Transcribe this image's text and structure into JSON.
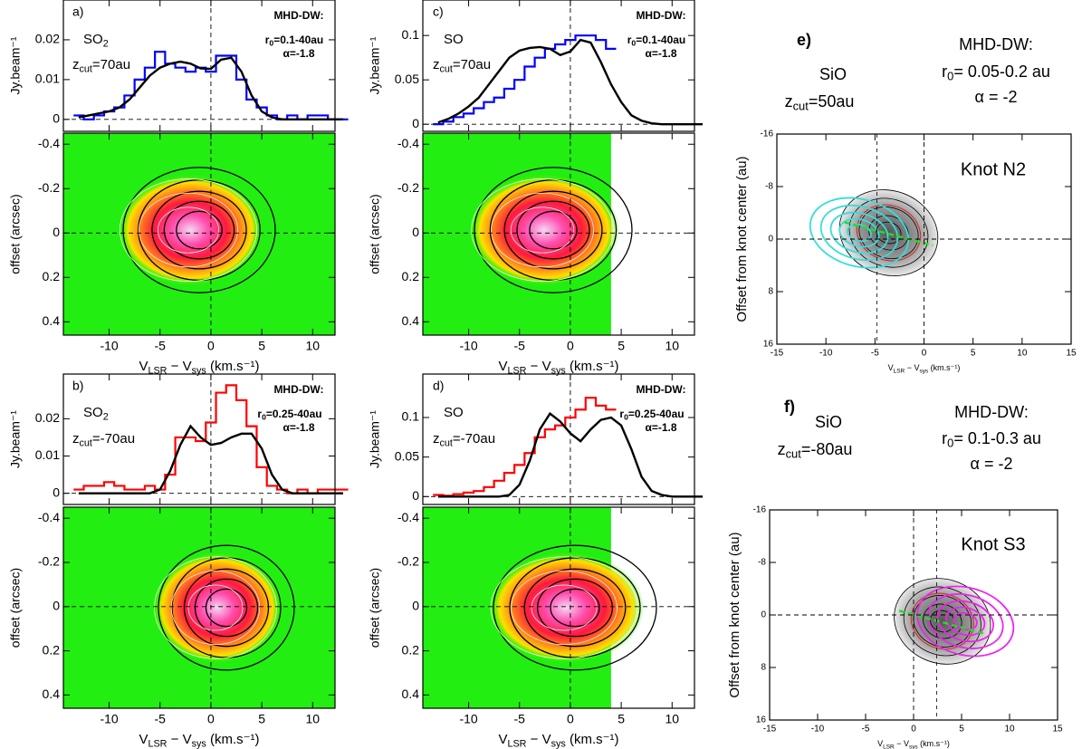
{
  "chart_data": [
    {
      "type": "line",
      "panel_label": "a)",
      "species": [
        "SO",
        "2"
      ],
      "zcut": [
        "z",
        "cut",
        "=70au"
      ],
      "model": "MHD-DW:",
      "r0": [
        "r",
        "0",
        "=0.1-40au"
      ],
      "alpha": "α=-1.8",
      "ylabel": "Jy.beam⁻¹",
      "x": [
        -13,
        -12,
        -11,
        -10,
        -9,
        -8,
        -7,
        -6,
        -5,
        -4,
        -3,
        -2,
        -1,
        0,
        1,
        2,
        3,
        4,
        5,
        6,
        7,
        8,
        9,
        10,
        11,
        12,
        13
      ],
      "xlim": [
        -14.5,
        12.2
      ],
      "xticks": [
        -10,
        -5,
        0,
        5,
        10
      ],
      "ylim": [
        -0.003,
        0.03
      ],
      "yticks": [
        0,
        0.01,
        0.02
      ],
      "series": [
        {
          "color": "#0000ff",
          "step": true,
          "values": [
            0.001,
            0,
            0.001,
            0.002,
            0.003,
            0.006,
            0.01,
            0.013,
            0.017,
            0.014,
            0.013,
            0.012,
            0.013,
            0.012,
            0.016,
            0.016,
            0.01,
            0.005,
            0.003,
            0.001,
            0,
            0.001,
            0,
            0.001,
            0.001,
            0,
            0
          ]
        },
        {
          "color": "#000000",
          "values": [
            0.0005,
            0.001,
            0.0015,
            0.002,
            0.003,
            0.005,
            0.008,
            0.011,
            0.013,
            0.014,
            0.0145,
            0.014,
            0.0128,
            0.0127,
            0.015,
            0.0155,
            0.012,
            0.006,
            0.002,
            0.0005,
            0,
            0,
            0,
            0,
            0,
            0,
            0
          ]
        }
      ]
    },
    {
      "type": "pv",
      "ylabel": "offset (arcsec)",
      "xlabel": [
        "V",
        "LSR",
        " − V",
        "sys",
        " (km.s⁻¹)"
      ],
      "xlim": [
        -14.5,
        12.2
      ],
      "xticks": [
        -10,
        -5,
        0,
        5,
        10
      ],
      "ylim": [
        0.46,
        -0.45
      ],
      "yticks": [
        -0.4,
        -0.2,
        0,
        0.2,
        0.4
      ]
    },
    {
      "type": "line",
      "panel_label": "c)",
      "species": [
        "SO"
      ],
      "zcut": [
        "z",
        "cut",
        "=70au"
      ],
      "model": "MHD-DW:",
      "r0": [
        "r",
        "0",
        "=0.1-40au"
      ],
      "alpha": "α=-1.8",
      "ylabel": "Jy.beam⁻¹",
      "x": [
        -13,
        -12,
        -11,
        -10,
        -9,
        -8,
        -7,
        -6,
        -5,
        -4,
        -3,
        -2,
        -1,
        0,
        1,
        2,
        3,
        4,
        5,
        6,
        7,
        8,
        9,
        10,
        11,
        12,
        13
      ],
      "xlim": [
        -14.5,
        12.2
      ],
      "xticks": [
        -10,
        -5,
        0,
        5,
        10
      ],
      "ylim": [
        -0.008,
        0.14
      ],
      "yticks": [
        0,
        0.05,
        0.1
      ],
      "series": [
        {
          "color": "#0000ff",
          "step": true,
          "values": [
            0,
            0.003,
            0.008,
            0.012,
            0.018,
            0.025,
            0.03,
            0.04,
            0.05,
            0.065,
            0.075,
            0.085,
            0.09,
            0.095,
            0.1,
            0.1,
            0.095,
            0.085,
            null,
            null,
            null,
            null,
            null,
            null,
            null,
            null,
            null
          ]
        },
        {
          "color": "#000000",
          "values": [
            0.002,
            0.006,
            0.012,
            0.02,
            0.03,
            0.045,
            0.06,
            0.075,
            0.083,
            0.086,
            0.087,
            0.085,
            0.078,
            0.082,
            0.095,
            0.092,
            0.07,
            0.045,
            0.025,
            0.01,
            0.004,
            0.001,
            0,
            0,
            0,
            0,
            0
          ]
        }
      ]
    },
    {
      "type": "pv",
      "ylabel": "offset (arcsec)",
      "xlabel": [
        "V",
        "LSR",
        " − V",
        "sys",
        " (km.s⁻¹)"
      ],
      "xlim": [
        -14.5,
        12.2
      ],
      "xticks": [
        -10,
        -5,
        0,
        5,
        10
      ],
      "ylim": [
        0.46,
        -0.45
      ],
      "yticks": [
        -0.4,
        -0.2,
        0,
        0.2,
        0.4
      ]
    },
    {
      "type": "line",
      "panel_label": "b)",
      "species": [
        "SO",
        "2"
      ],
      "zcut": [
        "z",
        "cut",
        "=-70au"
      ],
      "model": "MHD-DW:",
      "r0": [
        "r",
        "0",
        "=0.25-40au"
      ],
      "alpha": "α=-1.8",
      "ylabel": "Jy.beam⁻¹",
      "x": [
        -13,
        -12,
        -11,
        -10,
        -9,
        -8,
        -7,
        -6,
        -5,
        -4,
        -3,
        -2,
        -1,
        0,
        1,
        2,
        3,
        4,
        5,
        6,
        7,
        8,
        9,
        10,
        11,
        12,
        13
      ],
      "xlim": [
        -14.5,
        12.2
      ],
      "xticks": [
        -10,
        -5,
        0,
        5,
        10
      ],
      "ylim": [
        -0.003,
        0.032
      ],
      "yticks": [
        0,
        0.01,
        0.02
      ],
      "series": [
        {
          "color": "#ff0000",
          "step": true,
          "values": [
            0.001,
            0.002,
            0.002,
            0.003,
            0.002,
            0.001,
            0.001,
            0.002,
            0.001,
            0.005,
            0.015,
            0.015,
            0.014,
            0.019,
            0.027,
            0.029,
            0.025,
            0.018,
            0.007,
            0.002,
            0.001,
            0,
            0.001,
            0,
            0.001,
            0.001,
            0.001
          ]
        },
        {
          "color": "#000000",
          "values": [
            0,
            0,
            0,
            0,
            0,
            0,
            0,
            0,
            0.001,
            0.006,
            0.013,
            0.018,
            0.015,
            0.013,
            0.0135,
            0.015,
            0.016,
            0.016,
            0.012,
            0.005,
            0.001,
            0,
            0,
            0,
            0,
            0,
            0
          ]
        }
      ]
    },
    {
      "type": "pv",
      "ylabel": "offset (arcsec)",
      "xlabel": [
        "V",
        "LSR",
        " − V",
        "sys",
        " (km.s⁻¹)"
      ],
      "xlim": [
        -14.5,
        12.2
      ],
      "xticks": [
        -10,
        -5,
        0,
        5,
        10
      ],
      "ylim": [
        0.46,
        -0.45
      ],
      "yticks": [
        -0.4,
        -0.2,
        0,
        0.2,
        0.4
      ]
    },
    {
      "type": "line",
      "panel_label": "d)",
      "species": [
        "SO"
      ],
      "zcut": [
        "z",
        "cut",
        "=-70au"
      ],
      "model": "MHD-DW:",
      "r0": [
        "r",
        "0",
        "=0.25-40au"
      ],
      "alpha": "α=-1.8",
      "ylabel": "Jy.beam⁻¹",
      "x": [
        -13,
        -12,
        -11,
        -10,
        -9,
        -8,
        -7,
        -6,
        -5,
        -4,
        -3,
        -2,
        -1,
        0,
        1,
        2,
        3,
        4,
        5,
        6,
        7,
        8,
        9,
        10,
        11,
        12,
        13
      ],
      "xlim": [
        -14.5,
        12.2
      ],
      "xticks": [
        -10,
        -5,
        0,
        5,
        10
      ],
      "ylim": [
        -0.01,
        0.155
      ],
      "yticks": [
        0,
        0.05,
        0.1
      ],
      "series": [
        {
          "color": "#ff0000",
          "step": true,
          "values": [
            0.002,
            0.001,
            0.003,
            0.005,
            0.007,
            0.012,
            0.02,
            0.03,
            0.04,
            0.055,
            0.075,
            0.085,
            0.09,
            0.1,
            0.11,
            0.125,
            0.115,
            0.11,
            null,
            null,
            null,
            null,
            null,
            null,
            null,
            null,
            null
          ]
        },
        {
          "color": "#000000",
          "values": [
            0,
            0,
            0,
            0,
            0,
            0,
            0,
            0.002,
            0.015,
            0.045,
            0.085,
            0.105,
            0.095,
            0.08,
            0.07,
            0.085,
            0.097,
            0.1,
            0.09,
            0.06,
            0.025,
            0.007,
            0.002,
            0,
            0,
            0,
            0
          ]
        }
      ]
    },
    {
      "type": "pv",
      "ylabel": "offset (arcsec)",
      "xlabel": [
        "V",
        "LSR",
        " − V",
        "sys",
        " (km.s⁻¹)"
      ],
      "xlim": [
        -14.5,
        12.2
      ],
      "xticks": [
        -10,
        -5,
        0,
        5,
        10
      ],
      "ylim": [
        0.46,
        -0.45
      ],
      "yticks": [
        -0.4,
        -0.2,
        0,
        0.2,
        0.4
      ]
    },
    {
      "type": "knot",
      "panel_label": "e)",
      "species": [
        "SiO"
      ],
      "zcut": [
        "z",
        "cut",
        "=50au"
      ],
      "model": "MHD-DW:",
      "r0": [
        "r",
        "0",
        "= 0.05-0.2 au"
      ],
      "alpha": "α = -2",
      "knot": "Knot N2",
      "ylabel": "Offset from knot center (au)",
      "xlabel": [
        "V",
        "LSR",
        " − V",
        "sys",
        " (km.s⁻¹)"
      ],
      "xlim": [
        -15,
        15
      ],
      "xticks": [
        -15,
        -10,
        -5,
        0,
        5,
        10,
        15
      ],
      "ylim": [
        16,
        -16
      ],
      "yticks": [
        -16,
        -8,
        0,
        8,
        16
      ]
    },
    {
      "type": "knot",
      "panel_label": "f)",
      "species": [
        "SiO"
      ],
      "zcut": [
        "z",
        "cut",
        "=-80au"
      ],
      "model": "MHD-DW:",
      "r0": [
        "r",
        "0",
        "= 0.1-0.3 au"
      ],
      "alpha": "α = -2",
      "knot": "Knot S3",
      "ylabel": "Offset from knot center (au)",
      "xlabel": [
        "V",
        "LSR",
        " − V",
        "sys",
        " (km.s⁻¹)"
      ],
      "xlim": [
        -15,
        15
      ],
      "xticks": [
        -15,
        -10,
        -5,
        0,
        5,
        10,
        15
      ],
      "ylim": [
        16,
        -16
      ],
      "yticks": [
        -16,
        -8,
        0,
        8,
        16
      ]
    }
  ]
}
